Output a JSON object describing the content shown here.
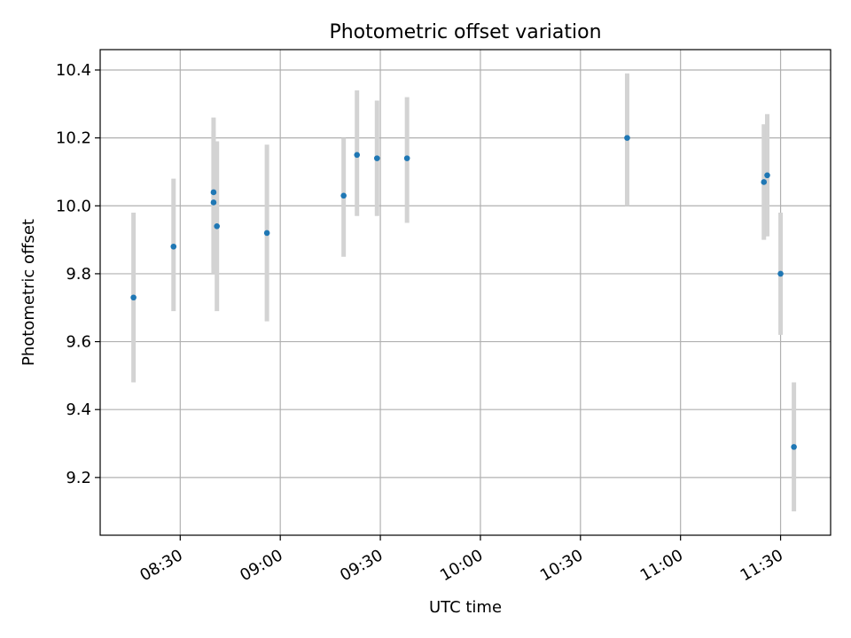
{
  "chart_data": {
    "type": "scatter",
    "title": "Photometric offset variation",
    "xlabel": "UTC time",
    "ylabel": "Photometric offset",
    "x_ticks": [
      "08:30",
      "09:00",
      "09:30",
      "10:00",
      "10:30",
      "11:00",
      "11:30"
    ],
    "y_ticks": [
      "9.2",
      "9.4",
      "9.6",
      "9.8",
      "10.0",
      "10.2",
      "10.4"
    ],
    "xlim": [
      "08:06",
      "11:45"
    ],
    "ylim": [
      9.03,
      10.46
    ],
    "grid": true,
    "colors": {
      "points": "#1f77b4",
      "errorbars": "#d3d3d3",
      "grid": "#b0b0b0"
    },
    "points": [
      {
        "x": "08:16",
        "y": 9.73,
        "ylo": 9.48,
        "yhi": 9.98
      },
      {
        "x": "08:28",
        "y": 9.88,
        "ylo": 9.69,
        "yhi": 10.08
      },
      {
        "x": "08:40",
        "y": 10.01,
        "ylo": 9.8,
        "yhi": 10.22
      },
      {
        "x": "08:40",
        "y": 10.04,
        "ylo": 9.82,
        "yhi": 10.26
      },
      {
        "x": "08:41",
        "y": 9.94,
        "ylo": 9.69,
        "yhi": 10.19
      },
      {
        "x": "08:56",
        "y": 9.92,
        "ylo": 9.66,
        "yhi": 10.18
      },
      {
        "x": "09:19",
        "y": 10.03,
        "ylo": 9.85,
        "yhi": 10.2
      },
      {
        "x": "09:23",
        "y": 10.15,
        "ylo": 9.97,
        "yhi": 10.34
      },
      {
        "x": "09:29",
        "y": 10.14,
        "ylo": 9.97,
        "yhi": 10.31
      },
      {
        "x": "09:38",
        "y": 10.14,
        "ylo": 9.95,
        "yhi": 10.32
      },
      {
        "x": "10:44",
        "y": 10.2,
        "ylo": 10.0,
        "yhi": 10.39
      },
      {
        "x": "11:25",
        "y": 10.07,
        "ylo": 9.9,
        "yhi": 10.24
      },
      {
        "x": "11:26",
        "y": 10.09,
        "ylo": 9.91,
        "yhi": 10.27
      },
      {
        "x": "11:30",
        "y": 9.8,
        "ylo": 9.62,
        "yhi": 9.98
      },
      {
        "x": "11:34",
        "y": 9.29,
        "ylo": 9.1,
        "yhi": 9.48
      }
    ]
  }
}
